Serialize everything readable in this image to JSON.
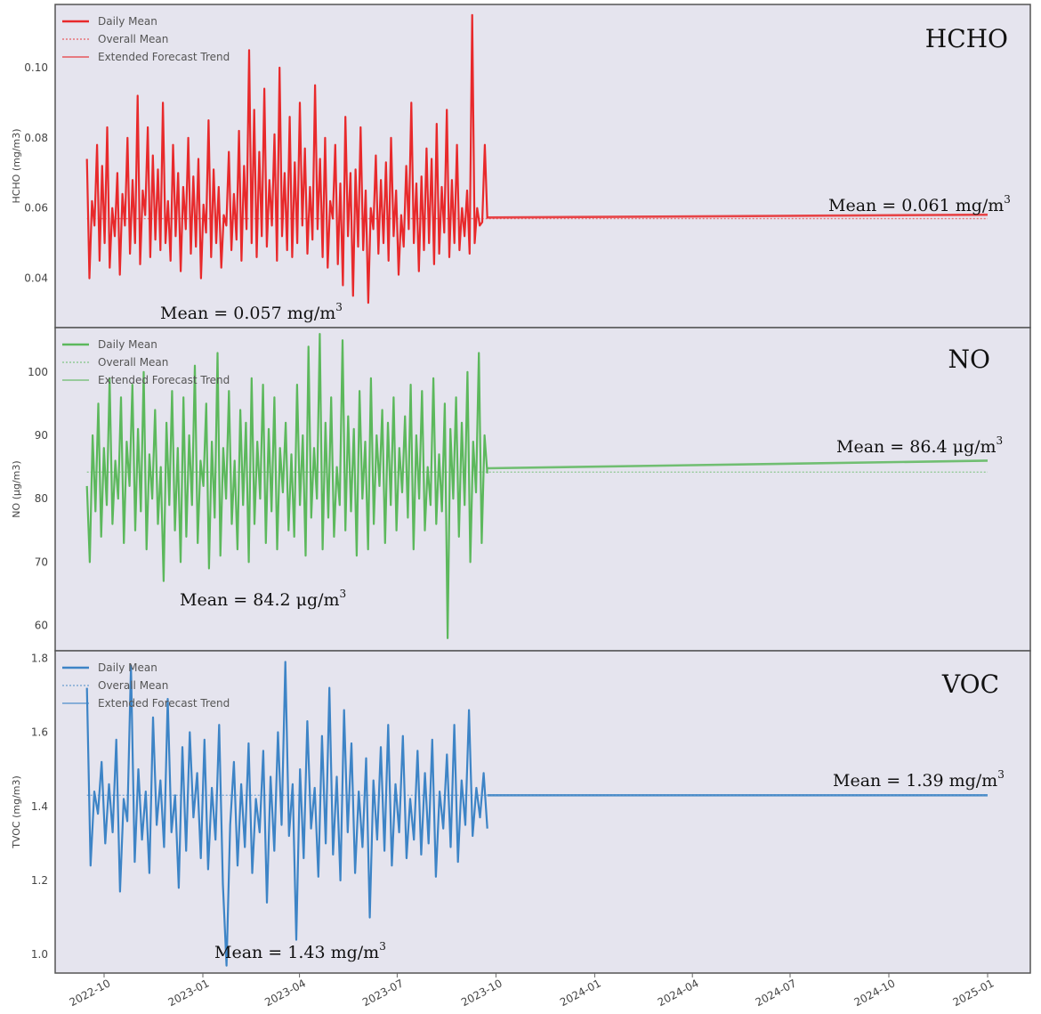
{
  "colors": {
    "HCHO": "#e8292b",
    "NO": "#5cb85c",
    "VOC": "#3d84c6",
    "panel_bg": "#e5e4ee",
    "border": "#555555"
  },
  "legend_labels": [
    "Daily Mean",
    "Overall Mean",
    "Extended Forecast Trend"
  ],
  "x_ticks": [
    "2022-10",
    "2023-01",
    "2023-04",
    "2023-07",
    "2023-10",
    "2024-01",
    "2024-04",
    "2024-07",
    "2024-10",
    "2025-01"
  ],
  "chart_data": [
    {
      "type": "line",
      "title": "HCHO",
      "ylabel": "HCHO (mg/m3)",
      "ylim": [
        0.03,
        0.118
      ],
      "yticks": [
        "0.04",
        "0.06",
        "0.08",
        "0.10"
      ],
      "ytick_values": [
        0.04,
        0.06,
        0.08,
        0.1
      ],
      "x_range": [
        "2022-08-01",
        "2025-01-31"
      ],
      "daily_start": "2022-09-15",
      "daily_end": "2023-09-23",
      "daily_mean_values": [
        0.074,
        0.04,
        0.062,
        0.055,
        0.078,
        0.045,
        0.072,
        0.05,
        0.083,
        0.043,
        0.06,
        0.052,
        0.07,
        0.041,
        0.064,
        0.055,
        0.08,
        0.047,
        0.068,
        0.05,
        0.092,
        0.044,
        0.065,
        0.058,
        0.083,
        0.046,
        0.075,
        0.051,
        0.071,
        0.048,
        0.09,
        0.05,
        0.062,
        0.045,
        0.078,
        0.052,
        0.07,
        0.042,
        0.066,
        0.054,
        0.08,
        0.047,
        0.069,
        0.049,
        0.074,
        0.04,
        0.061,
        0.053,
        0.085,
        0.046,
        0.071,
        0.05,
        0.066,
        0.043,
        0.058,
        0.055,
        0.076,
        0.048,
        0.064,
        0.051,
        0.082,
        0.045,
        0.072,
        0.054,
        0.105,
        0.05,
        0.088,
        0.046,
        0.076,
        0.052,
        0.094,
        0.049,
        0.068,
        0.055,
        0.081,
        0.045,
        0.1,
        0.052,
        0.07,
        0.048,
        0.086,
        0.046,
        0.073,
        0.05,
        0.09,
        0.055,
        0.077,
        0.047,
        0.066,
        0.051,
        0.095,
        0.054,
        0.074,
        0.046,
        0.08,
        0.043,
        0.062,
        0.057,
        0.078,
        0.044,
        0.067,
        0.038,
        0.086,
        0.052,
        0.07,
        0.035,
        0.071,
        0.049,
        0.083,
        0.048,
        0.065,
        0.033,
        0.06,
        0.054,
        0.075,
        0.047,
        0.068,
        0.05,
        0.073,
        0.045,
        0.08,
        0.052,
        0.065,
        0.041,
        0.058,
        0.049,
        0.072,
        0.054,
        0.09,
        0.05,
        0.067,
        0.042,
        0.069,
        0.048,
        0.077,
        0.05,
        0.074,
        0.044,
        0.084,
        0.047,
        0.066,
        0.053,
        0.088,
        0.046,
        0.068,
        0.05,
        0.078,
        0.048,
        0.06,
        0.052,
        0.065,
        0.047,
        0.115,
        0.05,
        0.06,
        0.055,
        0.056,
        0.078,
        0.057
      ],
      "overall_mean_value": 0.057,
      "forecast_x": [
        "2023-09-23",
        "2025-01-31"
      ],
      "forecast_y": [
        0.0573,
        0.0581
      ],
      "annotation_left": "Mean = 0.057 mg/m",
      "annotation_right": "Mean = 0.061 mg/m",
      "annotation_sup": "3"
    },
    {
      "type": "line",
      "title": "NO",
      "ylabel": "NO (μg/m3)",
      "ylim": [
        56,
        107
      ],
      "yticks": [
        "60",
        "70",
        "80",
        "90",
        "100"
      ],
      "ytick_values": [
        60,
        70,
        80,
        90,
        100
      ],
      "x_range": [
        "2022-08-01",
        "2025-01-31"
      ],
      "daily_start": "2022-09-15",
      "daily_end": "2023-09-23",
      "daily_mean_values": [
        82,
        70,
        90,
        78,
        95,
        74,
        88,
        79,
        99,
        76,
        86,
        80,
        96,
        73,
        89,
        82,
        98,
        75,
        91,
        78,
        100,
        72,
        87,
        80,
        94,
        76,
        85,
        67,
        92,
        79,
        97,
        75,
        88,
        70,
        96,
        74,
        90,
        79,
        101,
        73,
        86,
        82,
        95,
        69,
        89,
        77,
        103,
        71,
        88,
        80,
        97,
        76,
        86,
        72,
        94,
        79,
        92,
        70,
        99,
        76,
        89,
        80,
        98,
        73,
        91,
        78,
        96,
        72,
        88,
        81,
        92,
        75,
        87,
        74,
        98,
        79,
        90,
        71,
        104,
        77,
        88,
        80,
        106,
        72,
        92,
        77,
        96,
        74,
        85,
        79,
        105,
        75,
        93,
        78,
        91,
        71,
        97,
        80,
        89,
        72,
        99,
        76,
        90,
        82,
        94,
        73,
        92,
        79,
        96,
        75,
        88,
        81,
        93,
        77,
        98,
        72,
        90,
        80,
        97,
        75,
        85,
        79,
        99,
        76,
        87,
        78,
        95,
        58,
        91,
        80,
        96,
        74,
        92,
        79,
        100,
        70,
        89,
        81,
        103,
        73,
        90,
        84
      ],
      "overall_mean_value": 84.2,
      "forecast_x": [
        "2023-09-23",
        "2025-01-31"
      ],
      "forecast_y": [
        84.8,
        86.0
      ],
      "annotation_left": "Mean = 84.2 μg/m",
      "annotation_right": "Mean = 86.4 μg/m",
      "annotation_sup": "3"
    },
    {
      "type": "line",
      "title": "VOC",
      "ylabel": "TVOC (mg/m3)",
      "ylim": [
        0.95,
        1.82
      ],
      "yticks": [
        "1.0",
        "1.2",
        "1.4",
        "1.6",
        "1.8"
      ],
      "ytick_values": [
        1.0,
        1.2,
        1.4,
        1.6,
        1.8
      ],
      "x_range": [
        "2022-08-01",
        "2025-01-31"
      ],
      "daily_start": "2022-09-15",
      "daily_end": "2023-09-23",
      "daily_mean_values": [
        1.72,
        1.24,
        1.44,
        1.38,
        1.52,
        1.3,
        1.46,
        1.33,
        1.58,
        1.17,
        1.42,
        1.36,
        1.78,
        1.25,
        1.5,
        1.31,
        1.44,
        1.22,
        1.64,
        1.35,
        1.47,
        1.29,
        1.69,
        1.33,
        1.43,
        1.18,
        1.56,
        1.28,
        1.6,
        1.37,
        1.49,
        1.26,
        1.58,
        1.23,
        1.45,
        1.31,
        1.62,
        1.19,
        0.97,
        1.35,
        1.52,
        1.24,
        1.46,
        1.29,
        1.57,
        1.22,
        1.42,
        1.33,
        1.55,
        1.14,
        1.48,
        1.28,
        1.6,
        1.35,
        1.79,
        1.32,
        1.46,
        1.04,
        1.5,
        1.26,
        1.63,
        1.34,
        1.45,
        1.21,
        1.59,
        1.3,
        1.72,
        1.27,
        1.48,
        1.2,
        1.66,
        1.33,
        1.57,
        1.22,
        1.44,
        1.29,
        1.53,
        1.1,
        1.47,
        1.31,
        1.56,
        1.28,
        1.62,
        1.24,
        1.46,
        1.33,
        1.59,
        1.26,
        1.42,
        1.31,
        1.55,
        1.27,
        1.49,
        1.3,
        1.58,
        1.21,
        1.44,
        1.34,
        1.54,
        1.29,
        1.62,
        1.25,
        1.47,
        1.35,
        1.66,
        1.32,
        1.45,
        1.37,
        1.49,
        1.34
      ],
      "overall_mean_value": 1.43,
      "forecast_x": [
        "2023-09-23",
        "2025-01-31"
      ],
      "forecast_y": [
        1.43,
        1.43
      ],
      "annotation_left": "Mean = 1.43 mg/m",
      "annotation_right": "Mean = 1.39 mg/m",
      "annotation_sup": "3"
    }
  ]
}
